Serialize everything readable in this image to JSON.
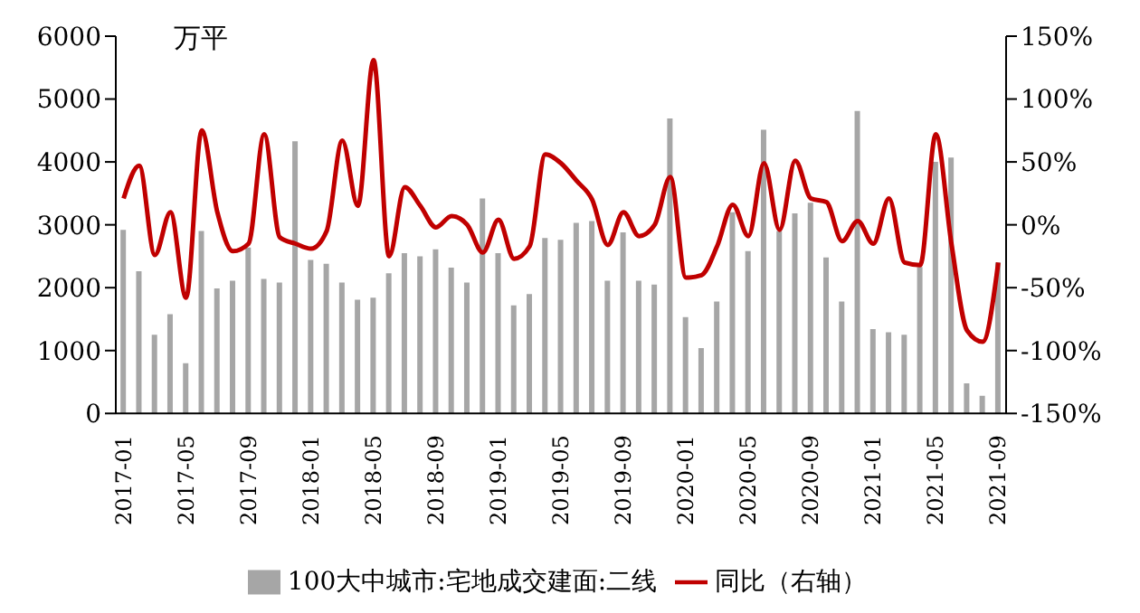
{
  "chart_data": {
    "type": "bar",
    "xlabel": null,
    "categories": [
      "2017-01",
      null,
      null,
      null,
      "2017-05",
      null,
      null,
      null,
      "2017-09",
      null,
      null,
      null,
      "2018-01",
      null,
      null,
      null,
      "2018-05",
      null,
      null,
      null,
      "2018-09",
      null,
      null,
      null,
      "2019-01",
      null,
      null,
      null,
      "2019-05",
      null,
      null,
      null,
      "2019-09",
      null,
      null,
      null,
      "2020-01",
      null,
      null,
      null,
      "2020-05",
      null,
      null,
      null,
      "2020-09",
      null,
      null,
      null,
      "2021-01",
      null,
      null,
      null,
      "2021-05",
      null,
      null,
      null,
      "2021-09"
    ],
    "series": [
      {
        "name": "100大中城市:宅地成交建面:二线",
        "color": "#a6a6a6",
        "values": [
          2920,
          2260,
          1250,
          1580,
          800,
          2900,
          1990,
          2110,
          2640,
          2140,
          2080,
          4330,
          2440,
          2380,
          2080,
          1810,
          1840,
          2230,
          2550,
          2500,
          2610,
          2320,
          2080,
          3420,
          2550,
          1720,
          1900,
          2790,
          2760,
          3030,
          3060,
          2110,
          2880,
          2110,
          2050,
          4690,
          1530,
          1040,
          1780,
          3200,
          2580,
          4510,
          2900,
          3180,
          3350,
          2480,
          1780,
          4810,
          1340,
          1290,
          1250,
          2330,
          4000,
          4070,
          480,
          280,
          2400
        ]
      },
      {
        "name": "同比（右轴）",
        "type": "line",
        "axis": "y2",
        "color": "#c00000",
        "values": [
          21,
          47,
          -24,
          10,
          -58,
          75,
          10,
          -21,
          -15,
          72,
          -10,
          -15,
          -19,
          -5,
          67,
          15,
          131,
          -25,
          30,
          15,
          -2,
          7,
          0,
          -22,
          4,
          -27,
          -17,
          56,
          49,
          35,
          20,
          -16,
          10,
          -9,
          0,
          38,
          -42,
          -40,
          -17,
          16,
          -9,
          49,
          -4,
          51,
          21,
          18,
          -13,
          3,
          -15,
          21,
          -30,
          -32,
          72,
          -15,
          -84,
          -93,
          -30
        ]
      }
    ],
    "ylim": [
      0,
      6000
    ],
    "yticks": [
      0,
      1000,
      2000,
      3000,
      4000,
      5000,
      6000
    ],
    "y2lim": [
      -150,
      150
    ],
    "y2ticks": [
      {
        "value": -150,
        "label": "-150%"
      },
      {
        "value": -100,
        "label": "-100%"
      },
      {
        "value": -50,
        "label": "-50%"
      },
      {
        "value": 0,
        "label": "0%"
      },
      {
        "value": 50,
        "label": "50%"
      },
      {
        "value": 100,
        "label": "100%"
      },
      {
        "value": 150,
        "label": "150%"
      }
    ],
    "annotations": [
      "万平"
    ],
    "legend": "bottom",
    "grid": false,
    "marker": "none",
    "line_style": "solid"
  }
}
